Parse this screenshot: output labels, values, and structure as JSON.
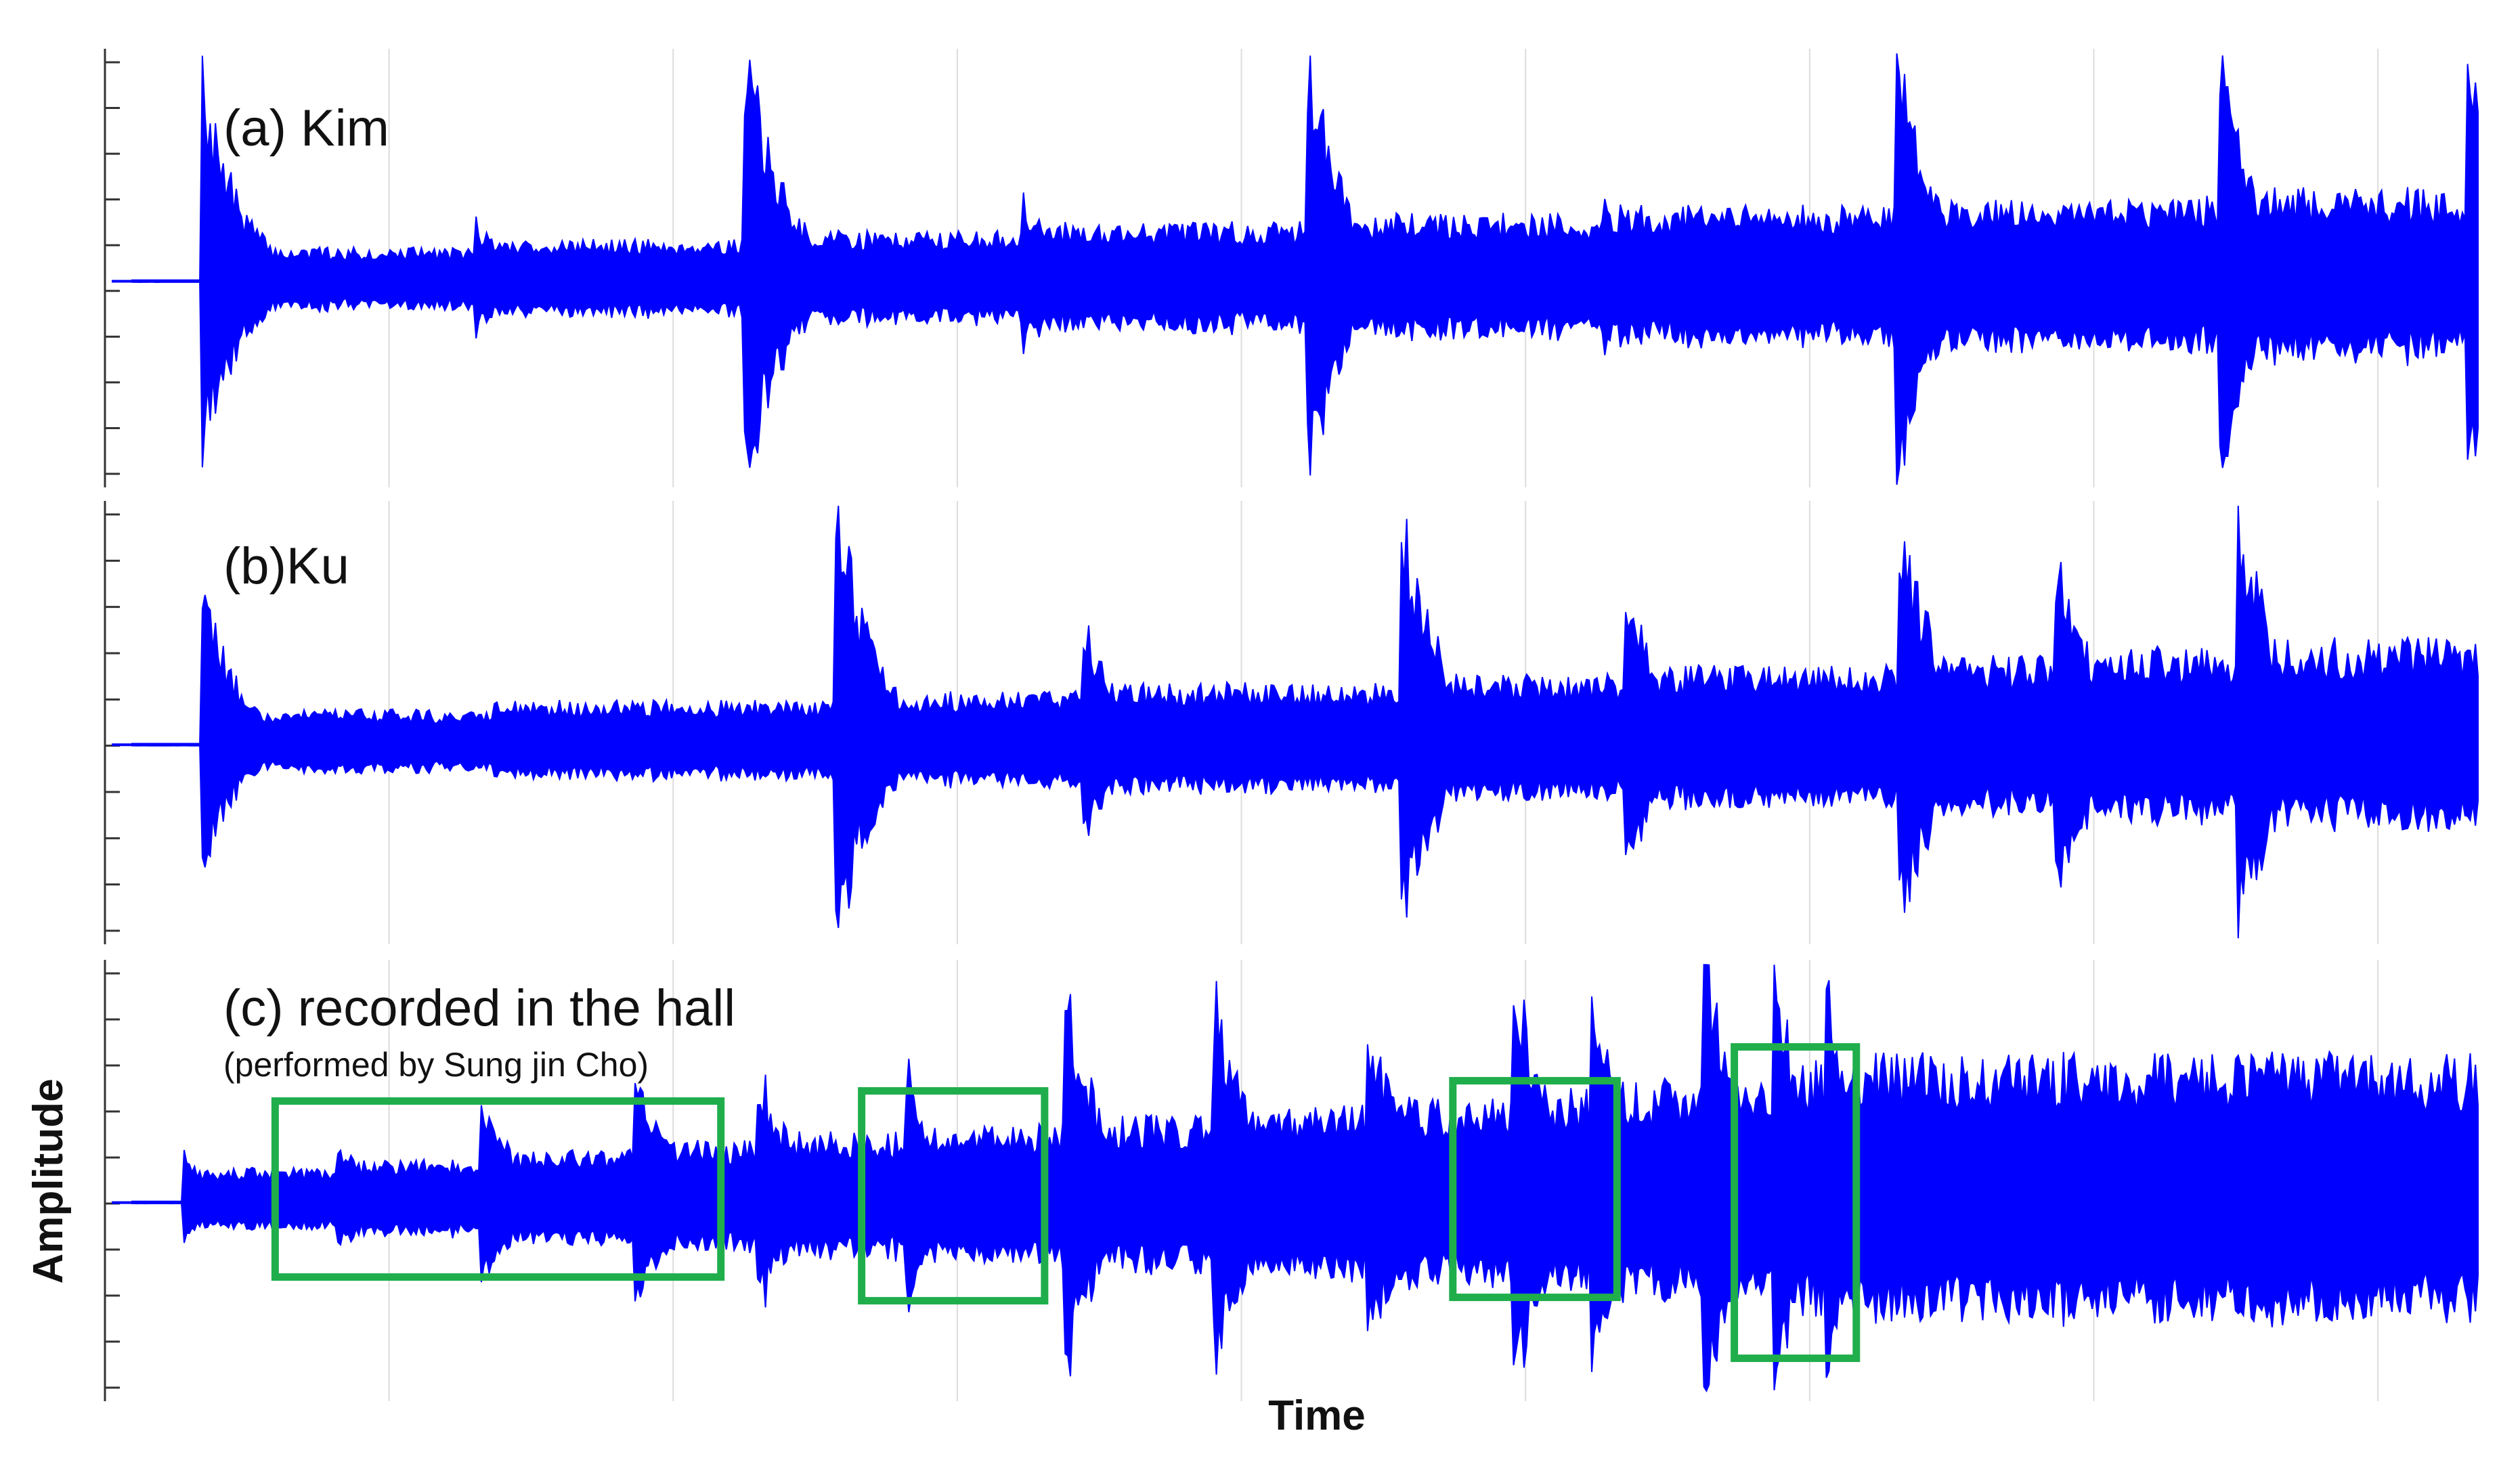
{
  "chart_data": {
    "type": "line",
    "xlabel": "Time",
    "ylabel": "Amplitude",
    "colors": {
      "waveform": "#0000ff",
      "highlight": "#1fae4b",
      "grid": "#dcdcdc",
      "axis": "#333333"
    },
    "panels": [
      {
        "id": "a",
        "title": "(a)  Kim",
        "subtitle": "",
        "onsets": [
          0.03,
          0.151,
          0.27,
          0.393,
          0.519,
          0.65,
          0.779,
          0.922,
          1.032
        ],
        "peaks": [
          0.85,
          0.25,
          1.0,
          0.35,
          0.95,
          0.32,
          1.0,
          1.0,
          0.9,
          1.0,
          1.0,
          1.0
        ],
        "highlights": []
      },
      {
        "id": "b",
        "title": "(b)Ku",
        "subtitle": "",
        "onsets": [
          0.03,
          0.16,
          0.31,
          0.42,
          0.56,
          0.66,
          0.78,
          0.85,
          0.93
        ],
        "peaks": [
          0.62,
          0.12,
          1.0,
          0.5,
          1.0,
          0.62,
          1.0,
          0.78,
          1.0,
          0.9,
          1.0,
          1.0,
          1.0
        ],
        "highlights": []
      },
      {
        "id": "c",
        "title": "(c) recorded in the hall",
        "subtitle": "(performed by Sung jin Cho)",
        "onsets": [
          0.023,
          0.09,
          0.154,
          0.222,
          0.276,
          0.341,
          0.412,
          0.477,
          0.545,
          0.61,
          0.645,
          0.694,
          0.725,
          0.748
        ],
        "peaks": [
          0.18,
          0.25,
          0.42,
          0.5,
          0.55,
          0.58,
          0.85,
          0.9,
          0.75,
          1.0,
          0.8,
          1.0,
          0.95,
          0.9
        ],
        "highlights": [
          {
            "from": 0.061,
            "to": 0.251
          },
          {
            "from": 0.311,
            "to": 0.389
          },
          {
            "from": 0.563,
            "to": 0.633
          },
          {
            "from": 0.683,
            "to": 0.735
          }
        ]
      }
    ]
  }
}
